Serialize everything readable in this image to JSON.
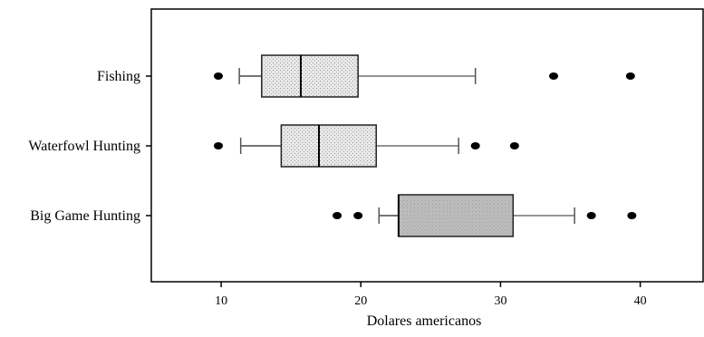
{
  "chart_data": {
    "type": "boxplot",
    "orientation": "horizontal",
    "title": "",
    "xlabel": "Dolares americanos",
    "ylabel": "",
    "xlim": [
      5,
      44.5
    ],
    "xticks": [
      10,
      20,
      30,
      40
    ],
    "grid": false,
    "categories": [
      "Fishing",
      "Waterfowl Hunting",
      "Big Game Hunting"
    ],
    "boxes": [
      {
        "category": "Fishing",
        "whisker_low": 11.3,
        "q1": 12.9,
        "median": 15.7,
        "q3": 19.8,
        "whisker_high": 28.2,
        "outliers": [
          9.8,
          33.8,
          39.3
        ],
        "fill": "#e8e8e8"
      },
      {
        "category": "Waterfowl Hunting",
        "whisker_low": 11.4,
        "q1": 14.3,
        "median": 17.0,
        "q3": 21.1,
        "whisker_high": 27.0,
        "outliers": [
          9.8,
          28.2,
          31.0
        ],
        "fill": "#e8e8e8"
      },
      {
        "category": "Big Game Hunting",
        "whisker_low": 21.3,
        "q1": 22.7,
        "median": 22.7,
        "q3": 30.9,
        "whisker_high": 35.3,
        "outliers": [
          18.3,
          19.8,
          36.5,
          39.4
        ],
        "fill": "#bcbcbc"
      }
    ]
  }
}
